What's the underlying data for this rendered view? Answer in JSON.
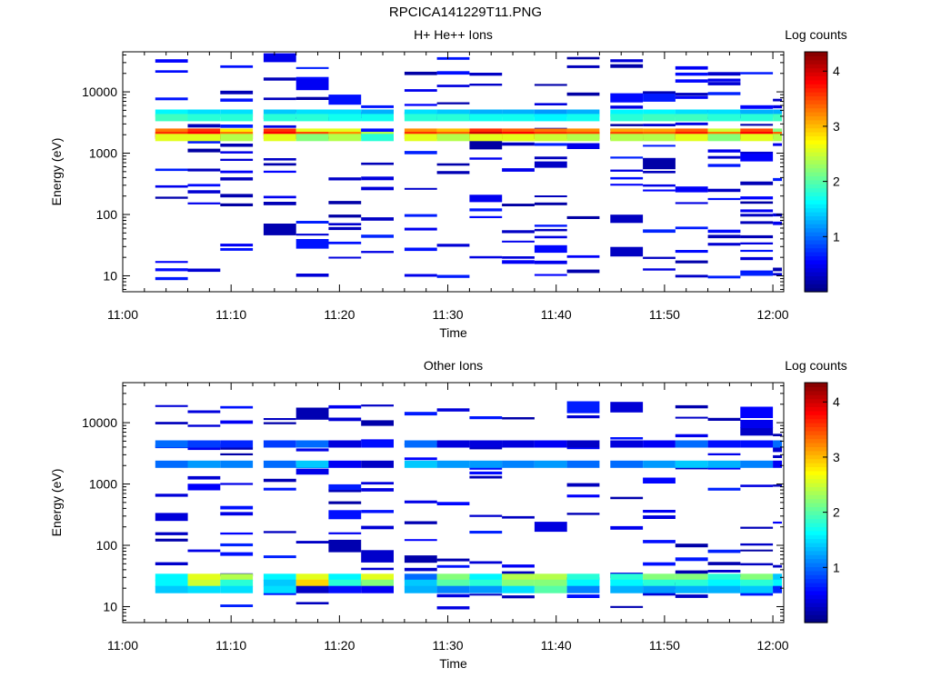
{
  "figure_title": "RPCICA141229T11.PNG",
  "chart_data": [
    {
      "type": "heatmap",
      "title": "H+ He++ Ions",
      "xlabel": "Time",
      "ylabel": "Energy (eV)",
      "x_tick_labels": [
        "11:00",
        "11:10",
        "11:20",
        "11:30",
        "11:40",
        "11:50",
        "12:00"
      ],
      "x_range_minutes": [
        0,
        61
      ],
      "y_scale": "log",
      "y_range": [
        5.5,
        45000
      ],
      "y_tick_values": [
        10,
        100,
        1000,
        10000
      ],
      "y_tick_labels": [
        "10",
        "100",
        "1000",
        "10000"
      ],
      "colorbar_label": "Log counts",
      "colorbar_ticks": [
        "1",
        "2",
        "3",
        "4"
      ],
      "colorbar_range": [
        0,
        4.35
      ],
      "time_columns": [
        "11:03",
        "11:06",
        "11:09",
        "11:13",
        "11:16",
        "11:19",
        "11:22",
        "11:26",
        "11:29",
        "11:32",
        "11:35",
        "11:38",
        "11:41",
        "11:45",
        "11:48",
        "11:51",
        "11:54",
        "11:57",
        "12:00"
      ],
      "bands": [
        {
          "energy": 4500,
          "values": [
            1.6,
            1.5,
            1.5,
            1.4,
            1.5,
            1.5,
            1.3,
            1.5,
            1.4,
            1.3,
            1.3,
            1.2,
            1.3,
            1.6,
            1.6,
            1.5,
            1.5,
            1.3,
            1.3
          ]
        },
        {
          "energy": 3800,
          "values": [
            1.9,
            1.8,
            1.8,
            1.8,
            1.8,
            1.7,
            1.7,
            1.8,
            1.8,
            1.7,
            1.7,
            1.6,
            1.7,
            1.8,
            1.9,
            1.9,
            1.8,
            1.8,
            1.9
          ]
        },
        {
          "energy": 2200,
          "values": [
            3.3,
            3.6,
            2.8,
            3.6,
            2.6,
            2.6,
            0.6,
            3.2,
            3.0,
            3.6,
            3.4,
            3.3,
            3.2,
            3.1,
            3.1,
            3.4,
            2.5,
            3.5,
            2.2
          ]
        },
        {
          "energy": 1950,
          "values": [
            3.6,
            3.8,
            3.3,
            3.8,
            3.5,
            3.2,
            2.4,
            3.6,
            3.4,
            4.0,
            3.8,
            3.6,
            3.5,
            3.5,
            3.4,
            3.7,
            3.3,
            3.8,
            3.4
          ]
        },
        {
          "energy": 1800,
          "values": [
            2.6,
            2.6,
            2.4,
            2.6,
            2.2,
            2.4,
            1.8,
            2.6,
            2.4,
            2.6,
            2.6,
            2.5,
            2.4,
            2.4,
            2.4,
            2.6,
            2.2,
            2.6,
            2.4
          ]
        }
      ],
      "sparse_energy_range": [
        9,
        40000
      ],
      "sparse_density": 0.32
    },
    {
      "type": "heatmap",
      "title": "Other Ions",
      "xlabel": "Time",
      "ylabel": "Energy (eV)",
      "x_tick_labels": [
        "11:00",
        "11:10",
        "11:20",
        "11:30",
        "11:40",
        "11:50",
        "12:00"
      ],
      "x_range_minutes": [
        0,
        61
      ],
      "y_scale": "log",
      "y_range": [
        5.5,
        45000
      ],
      "y_tick_values": [
        10,
        100,
        1000,
        10000
      ],
      "y_tick_labels": [
        "10",
        "100",
        "1000",
        "10000"
      ],
      "colorbar_label": "Log counts",
      "colorbar_ticks": [
        "1",
        "2",
        "3",
        "4"
      ],
      "colorbar_range": [
        0,
        4.35
      ],
      "time_columns": [
        "11:03",
        "11:06",
        "11:09",
        "11:13",
        "11:16",
        "11:19",
        "11:22",
        "11:26",
        "11:29",
        "11:32",
        "11:35",
        "11:38",
        "11:41",
        "11:45",
        "11:48",
        "11:51",
        "11:54",
        "11:57",
        "12:00"
      ],
      "bands": [
        {
          "energy": 30,
          "values": [
            1.6,
            2.6,
            2.4,
            1.6,
            2.6,
            1.6,
            2.6,
            1.0,
            2.2,
            1.6,
            2.4,
            2.4,
            1.8,
            1.8,
            2.2,
            2.2,
            1.8,
            2.2,
            1.4
          ]
        },
        {
          "energy": 24,
          "values": [
            1.6,
            2.5,
            1.8,
            1.4,
            2.9,
            1.8,
            2.2,
            1.4,
            2.0,
            1.8,
            2.2,
            2.2,
            1.6,
            1.6,
            1.8,
            1.8,
            1.6,
            1.8,
            1.6
          ]
        },
        {
          "energy": 19,
          "values": [
            1.4,
            1.5,
            1.5,
            1.5,
            0.3,
            0.6,
            0.5,
            1.3,
            1.1,
            1.2,
            1.5,
            2.0,
            1.1,
            1.3,
            1.2,
            1.3,
            1.3,
            1.4,
            0.7
          ]
        },
        {
          "energy": 2100,
          "values": [
            1.0,
            1.2,
            1.1,
            1.0,
            1.4,
            0.5,
            0.3,
            1.4,
            1.2,
            1.2,
            1.1,
            1.2,
            1.0,
            1.0,
            1.2,
            1.4,
            1.3,
            1.1,
            0.5
          ]
        },
        {
          "energy": 4500,
          "values": [
            1.0,
            0.8,
            0.7,
            0.8,
            1.0,
            0.4,
            0.6,
            1.0,
            0.4,
            0.4,
            0.4,
            0.5,
            0.3,
            0.4,
            0.5,
            1.0,
            0.6,
            0.6,
            1.0
          ]
        }
      ],
      "sparse_energy_range": [
        9,
        22000
      ],
      "sparse_density": 0.24
    }
  ]
}
